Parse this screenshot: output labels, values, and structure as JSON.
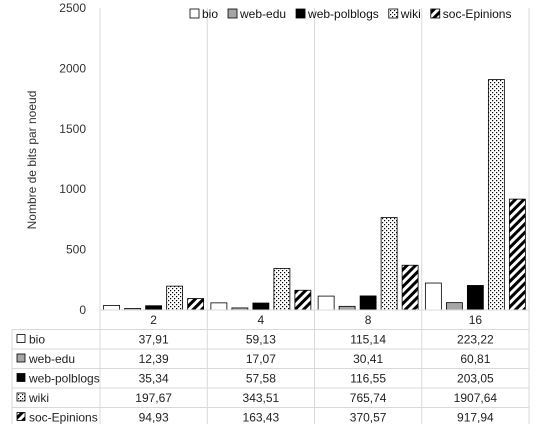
{
  "chart_data": {
    "type": "bar",
    "title": "",
    "xlabel": "",
    "ylabel": "Nombre de bits par noeud",
    "ylim": [
      0,
      2500
    ],
    "yticks": [
      "0",
      "500",
      "1000",
      "1500",
      "2000",
      "2500"
    ],
    "categories": [
      "2",
      "4",
      "8",
      "16"
    ],
    "grid": "vertical category separators",
    "legend_position": "top",
    "series": [
      {
        "name": "bio",
        "pattern": "white",
        "values": [
          37.91,
          59.13,
          115.14,
          223.22
        ],
        "labels": [
          "37,91",
          "59,13",
          "115,14",
          "223,22"
        ]
      },
      {
        "name": "web-edu",
        "pattern": "gray",
        "values": [
          12.39,
          17.07,
          30.41,
          60.81
        ],
        "labels": [
          "12,39",
          "17,07",
          "30,41",
          "60,81"
        ]
      },
      {
        "name": "web-polblogs",
        "pattern": "black",
        "values": [
          35.34,
          57.58,
          116.55,
          203.05
        ],
        "labels": [
          "35,34",
          "57,58",
          "116,55",
          "203,05"
        ]
      },
      {
        "name": "wiki",
        "pattern": "dots",
        "values": [
          197.67,
          343.51,
          765.74,
          1907.64
        ],
        "labels": [
          "197,67",
          "343,51",
          "765,74",
          "1907,64"
        ]
      },
      {
        "name": "soc-Epinions",
        "pattern": "stripes",
        "values": [
          94.93,
          163.43,
          370.57,
          917.94
        ],
        "labels": [
          "94,93",
          "163,43",
          "370,57",
          "917,94"
        ]
      }
    ],
    "colors": {
      "gray": "#a6a6a6",
      "black": "#000000",
      "stroke": "#000000",
      "grid": "#d9d9d9"
    }
  }
}
